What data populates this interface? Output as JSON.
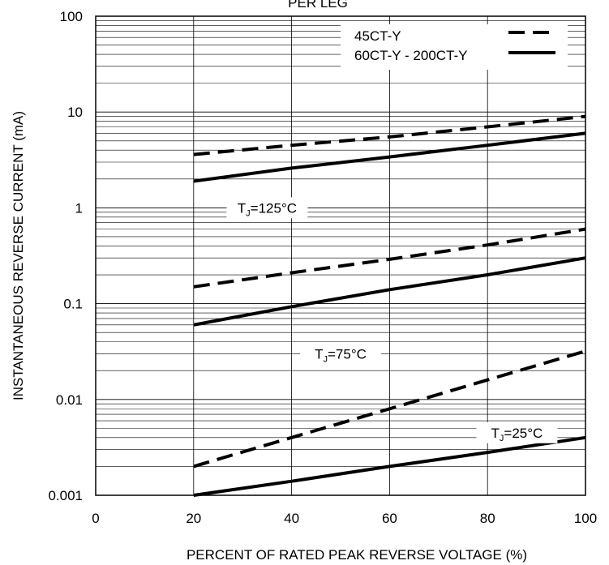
{
  "chart_data": {
    "type": "line",
    "title": "PER LEG",
    "xlabel": "PERCENT OF RATED PEAK REVERSE VOLTAGE (%)",
    "ylabel": "INSTANTANEOUS REVERSE CURRENT (mA)",
    "xlim": [
      0,
      100
    ],
    "ylim": [
      0.001,
      100
    ],
    "yscale": "log",
    "grid": true,
    "legend_position": "top-right",
    "x_ticks": [
      "0",
      "20",
      "40",
      "60",
      "80",
      "100"
    ],
    "y_ticks": [
      "0.001",
      "0.01",
      "0.1",
      "1",
      "10",
      "100"
    ],
    "legend": [
      {
        "label": "45CT-Y",
        "style": "dashed"
      },
      {
        "label": "60CT-Y - 200CT-Y",
        "style": "solid"
      }
    ],
    "annotations": [
      {
        "main": "T",
        "sub": "J",
        "rest": "=125°C",
        "x": 35,
        "y": 1.0
      },
      {
        "main": "T",
        "sub": "J",
        "rest": "=75°C",
        "x": 50,
        "y": 0.03
      },
      {
        "main": "T",
        "sub": "J",
        "rest": "=25°C",
        "x": 86,
        "y": 0.0045
      }
    ],
    "series": [
      {
        "group": "45CT-Y",
        "condition": "TJ=125°C",
        "style": "dashed",
        "x": [
          20,
          40,
          60,
          80,
          100
        ],
        "y": [
          3.6,
          4.5,
          5.5,
          7.0,
          9.0
        ]
      },
      {
        "group": "60CT-Y - 200CT-Y",
        "condition": "TJ=125°C",
        "style": "solid",
        "x": [
          20,
          40,
          60,
          80,
          100
        ],
        "y": [
          1.9,
          2.6,
          3.4,
          4.5,
          6.0
        ]
      },
      {
        "group": "45CT-Y",
        "condition": "TJ=75°C",
        "style": "dashed",
        "x": [
          20,
          40,
          60,
          80,
          100
        ],
        "y": [
          0.15,
          0.21,
          0.29,
          0.41,
          0.6
        ]
      },
      {
        "group": "60CT-Y - 200CT-Y",
        "condition": "TJ=75°C",
        "style": "solid",
        "x": [
          20,
          40,
          60,
          80,
          100
        ],
        "y": [
          0.06,
          0.093,
          0.14,
          0.2,
          0.3
        ]
      },
      {
        "group": "45CT-Y",
        "condition": "TJ=25°C",
        "style": "dashed",
        "x": [
          20,
          40,
          60,
          80,
          100
        ],
        "y": [
          0.002,
          0.004,
          0.008,
          0.016,
          0.032
        ]
      },
      {
        "group": "60CT-Y - 200CT-Y",
        "condition": "TJ=25°C",
        "style": "solid",
        "x": [
          20,
          40,
          60,
          80,
          100
        ],
        "y": [
          0.001,
          0.0014,
          0.002,
          0.0028,
          0.004
        ]
      }
    ]
  }
}
